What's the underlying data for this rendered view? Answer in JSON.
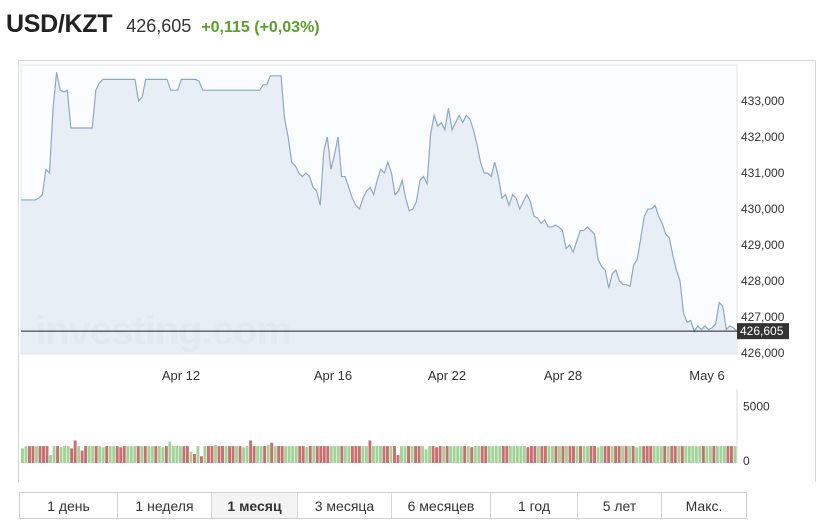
{
  "header": {
    "pair": "USD/KZT",
    "price": "426,605",
    "change": "+0,115 (+0,03%)"
  },
  "watermark": "investing.com",
  "colors": {
    "line": "#8fa8c8",
    "area": "#e3ebf4",
    "vol_up": "#a3d29b",
    "vol_down": "#c67070",
    "change_positive": "#5aa02c",
    "last_price_label_bg": "#333333"
  },
  "tabs": [
    {
      "label": "1 день",
      "active": false
    },
    {
      "label": "1 неделя",
      "active": false
    },
    {
      "label": "1 месяц",
      "active": true
    },
    {
      "label": "3 месяца",
      "active": false
    },
    {
      "label": "6 месяцев",
      "active": false
    },
    {
      "label": "1 год",
      "active": false
    },
    {
      "label": "5 лет",
      "active": false
    },
    {
      "label": "Макс.",
      "active": false
    }
  ],
  "chart_data": [
    {
      "type": "area",
      "title": "USD/KZT",
      "ylim": [
        425.97,
        434.0
      ],
      "y_ticks": [
        "433,000",
        "432,000",
        "431,000",
        "430,000",
        "429,000",
        "428,000",
        "427,000",
        "426,000"
      ],
      "x_ticks": [
        "Apr 12",
        "Apr 16",
        "Apr 22",
        "Apr 28",
        "May 6"
      ],
      "last_price": 426.605,
      "last_price_label": "426,605",
      "grid": false,
      "values": [
        430.25,
        430.25,
        430.25,
        430.25,
        430.25,
        430.3,
        430.4,
        431.1,
        431.0,
        432.8,
        433.8,
        433.3,
        433.25,
        433.3,
        432.25,
        432.25,
        432.25,
        432.25,
        432.25,
        432.25,
        432.25,
        433.3,
        433.5,
        433.6,
        433.6,
        433.6,
        433.6,
        433.6,
        433.6,
        433.6,
        433.6,
        433.6,
        433.6,
        433.0,
        433.1,
        433.6,
        433.6,
        433.6,
        433.6,
        433.6,
        433.6,
        433.6,
        433.3,
        433.3,
        433.3,
        433.6,
        433.6,
        433.6,
        433.6,
        433.6,
        433.55,
        433.3,
        433.3,
        433.3,
        433.3,
        433.3,
        433.3,
        433.3,
        433.3,
        433.3,
        433.3,
        433.3,
        433.3,
        433.3,
        433.3,
        433.3,
        433.3,
        433.3,
        433.45,
        433.45,
        433.7,
        433.7,
        433.7,
        433.7,
        432.5,
        432.0,
        431.3,
        431.2,
        431.0,
        430.9,
        431.0,
        430.9,
        430.6,
        430.5,
        430.1,
        431.6,
        432.0,
        431.1,
        431.5,
        432.0,
        430.9,
        430.9,
        430.6,
        430.3,
        430.1,
        430.0,
        430.3,
        430.5,
        430.6,
        430.4,
        430.8,
        431.1,
        431.0,
        431.3,
        431.0,
        430.4,
        430.5,
        430.8,
        430.3,
        429.95,
        430.0,
        430.2,
        430.8,
        430.9,
        430.7,
        432.1,
        432.6,
        432.3,
        432.4,
        432.2,
        432.8,
        432.2,
        432.4,
        432.6,
        432.4,
        432.6,
        432.5,
        432.2,
        431.8,
        431.3,
        431.0,
        431.0,
        430.9,
        431.3,
        430.9,
        430.3,
        430.4,
        430.1,
        430.4,
        430.3,
        430.0,
        430.2,
        430.4,
        430.2,
        429.8,
        429.75,
        429.6,
        429.7,
        429.5,
        429.5,
        429.55,
        429.5,
        429.4,
        428.9,
        429.0,
        428.8,
        429.1,
        429.4,
        429.4,
        429.5,
        429.4,
        429.3,
        428.6,
        428.4,
        428.3,
        427.8,
        428.2,
        428.3,
        428.0,
        427.9,
        427.9,
        427.85,
        428.45,
        428.6,
        429.2,
        429.8,
        430.0,
        430.0,
        430.1,
        429.8,
        429.6,
        429.3,
        429.2,
        428.7,
        428.3,
        428.0,
        427.1,
        426.85,
        426.9,
        426.6,
        426.75,
        426.65,
        426.75,
        426.65,
        426.7,
        426.8,
        427.4,
        427.3,
        426.65,
        426.75,
        426.7,
        426.605
      ]
    },
    {
      "type": "bar",
      "title": "",
      "ylim": [
        0,
        5500
      ],
      "y_ticks": [
        "5000",
        "0"
      ],
      "values": [
        1300,
        1500,
        1500,
        1500,
        1500,
        1500,
        1500,
        1500,
        700,
        1500,
        1500,
        1400,
        1500,
        1500,
        1300,
        2000,
        1500,
        1100,
        1500,
        1500,
        1500,
        1500,
        1500,
        1400,
        1500,
        1500,
        1500,
        1500,
        1400,
        1500,
        1500,
        1500,
        1500,
        1500,
        1500,
        1500,
        1500,
        1500,
        1500,
        1500,
        1400,
        1500,
        1900,
        1500,
        1500,
        1500,
        1500,
        1500,
        1000,
        800,
        1500,
        600,
        1500,
        1500,
        1500,
        1600,
        1500,
        1500,
        1500,
        1500,
        1500,
        1500,
        1500,
        1400,
        1500,
        2000,
        1500,
        1500,
        1500,
        1500,
        1600,
        1800,
        1500,
        1500,
        1500,
        1500,
        1500,
        1500,
        1500,
        1500,
        1500,
        1400,
        1500,
        1500,
        1500,
        1500,
        1500,
        1500,
        1500,
        1500,
        1500,
        1500,
        1500,
        1500,
        1500,
        1500,
        1500,
        1500,
        1500,
        2000,
        1500,
        1500,
        1500,
        1500,
        1500,
        1500,
        1500,
        700,
        1500,
        1500,
        1500,
        1500,
        1500,
        1500,
        1500,
        1200,
        1500,
        1500,
        1400,
        1500,
        1500,
        1500,
        1500,
        1500,
        1500,
        1500,
        1500,
        1500,
        1400,
        1500,
        1500,
        1500,
        1500,
        1500,
        1500,
        1500,
        1500,
        1500,
        1500,
        1500,
        1500,
        1500,
        1500,
        1500,
        1400,
        1500,
        1500,
        1500,
        1500,
        1500,
        1500,
        1500,
        1500,
        1500,
        1500,
        1500,
        1500,
        1500,
        1500,
        1500,
        1500,
        1500,
        1500,
        1500,
        1400,
        1500,
        1500,
        1500,
        1500,
        1500,
        1500,
        1500,
        1500,
        1500,
        1500,
        1400,
        1500,
        1500,
        1500,
        1500,
        1500,
        1500,
        1500,
        1500,
        1500,
        1500,
        1500,
        1500,
        1500,
        1500,
        1500,
        1500,
        1500,
        1500,
        1500,
        1500,
        1500,
        1500,
        1500,
        1500,
        1500,
        1500,
        1500,
        1500
      ],
      "up": [
        1,
        1,
        0,
        0,
        1,
        0,
        0,
        0,
        1,
        1,
        0,
        1,
        1,
        1,
        0,
        0,
        1,
        0,
        0,
        1,
        1,
        0,
        1,
        1,
        0,
        1,
        1,
        0,
        0,
        0,
        1,
        1,
        1,
        0,
        1,
        0,
        1,
        1,
        0,
        1,
        1,
        0,
        1,
        1,
        1,
        1,
        0,
        0,
        1,
        0,
        1,
        0,
        1,
        0,
        0,
        1,
        0,
        0,
        1,
        0,
        0,
        1,
        0,
        1,
        1,
        0,
        0,
        1,
        1,
        0,
        1,
        0,
        1,
        0,
        0,
        1,
        1,
        1,
        1,
        0,
        0,
        1,
        0,
        1,
        0,
        0,
        0,
        0,
        1,
        1,
        1,
        0,
        1,
        1,
        0,
        0,
        0,
        1,
        1,
        0,
        1,
        1,
        1,
        0,
        0,
        1,
        0,
        0,
        1,
        1,
        0,
        1,
        0,
        0,
        1,
        1,
        1,
        0,
        0,
        0,
        1,
        0,
        1,
        1,
        1,
        1,
        0,
        1,
        0,
        1,
        1,
        0,
        0,
        1,
        1,
        1,
        1,
        0,
        0,
        1,
        1,
        1,
        1,
        1,
        0,
        0,
        0,
        1,
        0,
        0,
        1,
        1,
        0,
        1,
        0,
        1,
        0,
        0,
        1,
        0,
        1,
        1,
        0,
        0,
        1,
        1,
        0,
        0,
        1,
        0,
        0,
        1,
        0,
        1,
        0,
        1,
        1,
        0,
        0,
        0,
        1,
        1,
        1,
        0,
        1,
        0,
        0,
        1,
        0,
        1,
        1,
        1,
        1,
        1,
        0,
        1,
        1,
        0,
        1
      ]
    }
  ]
}
